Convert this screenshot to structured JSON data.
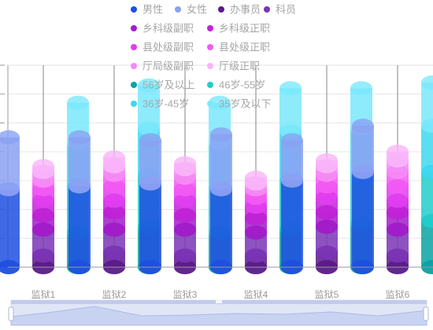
{
  "chart_data": {
    "type": "bar",
    "style": "stacked-3d-cylinder",
    "title": "",
    "xlabel": "",
    "ylabel": "",
    "ylim": [
      0,
      70
    ],
    "grid": true,
    "legend_position": "top",
    "categories": [
      "监狱1",
      "监狱2",
      "监狱3",
      "监狱4",
      "监狱5",
      "监狱6"
    ],
    "groups": [
      {
        "name": "gender",
        "series": [
          {
            "name": "男性",
            "color": "#1f4fe0",
            "values": [
              27,
              28,
              29,
              27,
              30,
              33
            ]
          },
          {
            "name": "女性",
            "color": "#8ba1f3",
            "values": [
              18,
              17,
              15,
              19,
              14,
              16
            ]
          }
        ]
      },
      {
        "name": "rank",
        "series": [
          {
            "name": "办事员",
            "color": "#5a1a8a",
            "values": [
              4,
              5,
              4,
              4,
              5,
              4
            ]
          },
          {
            "name": "科员",
            "color": "#7a35b5",
            "values": [
              9,
              8,
              9,
              8,
              9,
              9
            ]
          },
          {
            "name": "乡科级副职",
            "color": "#a21cc9",
            "values": [
              5,
              6,
              5,
              5,
              5,
              6
            ]
          },
          {
            "name": "乡科级正职",
            "color": "#c024d6",
            "values": [
              5,
              4,
              5,
              4,
              5,
              4
            ]
          },
          {
            "name": "县处级副职",
            "color": "#e03ef0",
            "values": [
              4,
              5,
              4,
              3,
              4,
              5
            ]
          },
          {
            "name": "县处级正职",
            "color": "#f25af2",
            "values": [
              3,
              4,
              4,
              3,
              4,
              5
            ]
          },
          {
            "name": "厅局级副职",
            "color": "#f58af5",
            "values": [
              3,
              3,
              3,
              2,
              3,
              4
            ]
          },
          {
            "name": "厅级正职",
            "color": "#f9b4f9",
            "values": [
              2,
              3,
              2,
              2,
              2,
              3
            ]
          }
        ]
      },
      {
        "name": "age",
        "series": [
          {
            "name": "56岁及以上",
            "color": "#0aa3a3",
            "values": [
              12,
              14,
              12,
              13,
              15,
              16
            ]
          },
          {
            "name": "46岁-55岁",
            "color": "#22cccc",
            "values": [
              16,
              18,
              15,
              17,
              16,
              17
            ]
          },
          {
            "name": "36岁-45岁",
            "color": "#3ed8f0",
            "values": [
              15,
              16,
              16,
              17,
              17,
              16
            ]
          },
          {
            "name": "35岁及以下",
            "color": "#7ae8fb",
            "values": [
              14,
              15,
              14,
              15,
              14,
              15
            ]
          }
        ]
      }
    ]
  },
  "legend_rows": [
    [
      "男性",
      "女性",
      "办事员",
      "科员"
    ],
    [
      "乡科级副职",
      "乡科级正职"
    ],
    [
      "县处级副职",
      "县处级正职"
    ],
    [
      "厅局级副职",
      "厅级正职"
    ],
    [
      "56岁及以上",
      "46岁-55岁"
    ],
    [
      "36岁-45岁",
      "35岁及以下"
    ]
  ],
  "datazoom": {
    "start_percent": 0,
    "end_percent": 100
  }
}
